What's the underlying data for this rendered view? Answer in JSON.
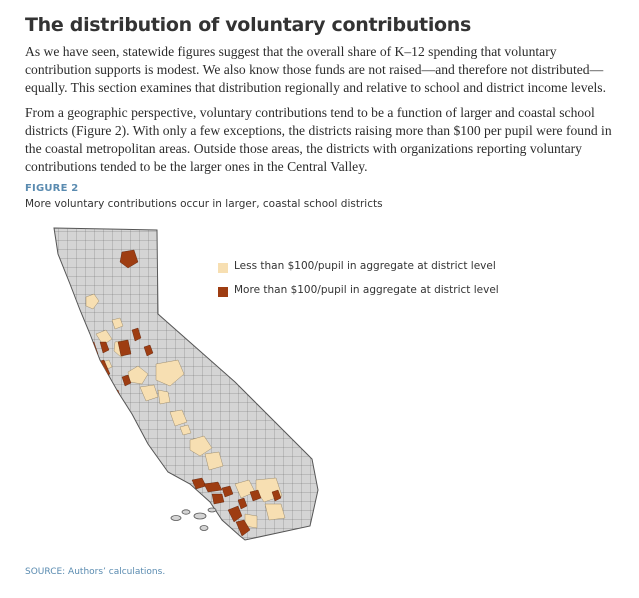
{
  "heading": "The distribution of voluntary contributions",
  "paragraphs": [
    "As we have seen, statewide figures suggest that the overall share of K–12 spending that voluntary contribution supports is modest. We also know those funds are not raised—and therefore not distributed—equally. This section examines that distribution regionally and relative to school and district income levels.",
    "From a geographic perspective, voluntary contributions tend to be a function of larger and coastal school districts (Figure 2). With only a few exceptions, the districts raising more than $100 per pupil were found in the coastal metropolitan areas. Outside those areas, the districts with organizations reporting voluntary contributions tended to be the larger ones in the Central Valley."
  ],
  "figure": {
    "label": "FIGURE 2",
    "caption": "More voluntary contributions occur in larger, coastal school districts",
    "legend": [
      {
        "label": "Less than $100/pupil in aggregate at district level",
        "color": "#f7dfb2"
      },
      {
        "label": "More than $100/pupil in aggregate at district level",
        "color": "#9e3d12"
      }
    ],
    "colors": {
      "district_fill": "#d4d4d4",
      "district_border": "#555555"
    }
  },
  "source": "SOURCE: Authors’ calculations."
}
